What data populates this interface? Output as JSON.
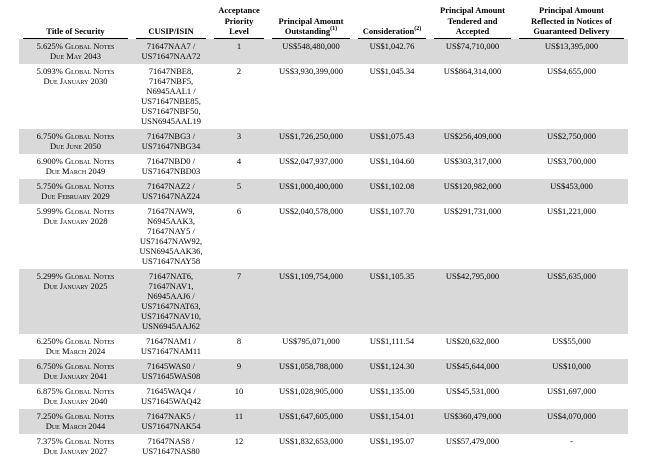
{
  "colors": {
    "row_shading": "#d9d9d9",
    "text": "#000000",
    "background": "#ffffff"
  },
  "table": {
    "headers": [
      {
        "text": "Title of Security",
        "sup": ""
      },
      {
        "text": "CUSIP/ISIN",
        "sup": ""
      },
      {
        "text": "Acceptance\nPriority\nLevel",
        "sup": ""
      },
      {
        "text": "Principal Amount\nOutstanding",
        "sup": "(1)"
      },
      {
        "text": "Consideration",
        "sup": "(2)"
      },
      {
        "text": "Principal Amount\nTendered and\nAccepted",
        "sup": ""
      },
      {
        "text": "Principal Amount\nReflected in Notices of\nGuaranteed Delivery",
        "sup": ""
      }
    ],
    "rows": [
      {
        "title": "5.625% Global Notes\nDue May 2043",
        "cusip": "71647NAA7 /\nUS71647NAA72",
        "priority": "1",
        "outstanding": "US$548,480,000",
        "consideration": "US$1,042.76",
        "tendered": "US$74,710,000",
        "guaranteed": "US$13,395,000",
        "shaded": true
      },
      {
        "title": "5.093% Global Notes\nDue January 2030",
        "cusip": "71647NBE8,\n71647NBF5,\nN6945AAL1 /\nUS71647NBE85,\nUS71647NBF50,\nUSN6945AAL19",
        "priority": "2",
        "outstanding": "US$3,930,399,000",
        "consideration": "US$1,045.34",
        "tendered": "US$864,314,000",
        "guaranteed": "US$4,655,000",
        "shaded": false
      },
      {
        "title": "6.750% Global Notes\nDue June 2050",
        "cusip": "71647NBG3 /\nUS71647NBG34",
        "priority": "3",
        "outstanding": "US$1,726,250,000",
        "consideration": "US$1,075.43",
        "tendered": "US$256,409,000",
        "guaranteed": "US$2,750,000",
        "shaded": true
      },
      {
        "title": "6.900% Global Notes\nDue March 2049",
        "cusip": "71647NBD0 /\nUS71647NBD03",
        "priority": "4",
        "outstanding": "US$2,047,937,000",
        "consideration": "US$1,104.60",
        "tendered": "US$303,317,000",
        "guaranteed": "US$3,700,000",
        "shaded": false
      },
      {
        "title": "5.750% Global Notes\nDue February 2029",
        "cusip": "71647NAZ2 /\nUS71647NAZ24",
        "priority": "5",
        "outstanding": "US$1,000,400,000",
        "consideration": "US$1,102.08",
        "tendered": "US$120,982,000",
        "guaranteed": "US$453,000",
        "shaded": true
      },
      {
        "title": "5.999% Global Notes\nDue January 2028",
        "cusip": "71647NAW9,\nN6945AAK3,\n71647NAY5 /\nUS71647NAW92,\nUSN6945AAK36,\nUS71647NAY58",
        "priority": "6",
        "outstanding": "US$2,040,578,000",
        "consideration": "US$1,107.70",
        "tendered": "US$291,731,000",
        "guaranteed": "US$1,221,000",
        "shaded": false
      },
      {
        "title": "5.299% Global Notes\nDue January 2025",
        "cusip": "71647NAT6,\n71647NAV1,\nN6945AAJ6 /\nUS71647NAT63,\nUS71647NAV10,\nUSN6945AAJ62",
        "priority": "7",
        "outstanding": "US$1,109,754,000",
        "consideration": "US$1,105.35",
        "tendered": "US$42,795,000",
        "guaranteed": "US$5,635,000",
        "shaded": true
      },
      {
        "title": "6.250% Global Notes\nDue March 2024",
        "cusip": "71647NAM1 /\nUS71647NAM11",
        "priority": "8",
        "outstanding": "US$795,071,000",
        "consideration": "US$1,111.54",
        "tendered": "US$20,632,000",
        "guaranteed": "US$55,000",
        "shaded": false
      },
      {
        "title": "6.750% Global Notes\nDue January 2041",
        "cusip": "71645WAS0 /\nUS71645WAS08",
        "priority": "9",
        "outstanding": "US$1,058,788,000",
        "consideration": "US$1,124.30",
        "tendered": "US$45,644,000",
        "guaranteed": "US$10,000",
        "shaded": true
      },
      {
        "title": "6.875% Global Notes\nDue January 2040",
        "cusip": "71645WAQ4 /\nUS71645WAQ42",
        "priority": "10",
        "outstanding": "US$1,028,905,000",
        "consideration": "US$1,135.00",
        "tendered": "US$45,531,000",
        "guaranteed": "US$1,697,000",
        "shaded": false
      },
      {
        "title": "7.250% Global Notes\nDue March 2044",
        "cusip": "71647NAK5 /\nUS71647NAK54",
        "priority": "11",
        "outstanding": "US$1,647,605,000",
        "consideration": "US$1,154.01",
        "tendered": "US$360,479,000",
        "guaranteed": "US$4,070,000",
        "shaded": true
      },
      {
        "title": "7.375% Global Notes\nDue January 2027",
        "cusip": "71647NAS8 /\nUS71647NAS80",
        "priority": "12",
        "outstanding": "US$1,832,653,000",
        "consideration": "US$1,195.07",
        "tendered": "US$57,479,000",
        "guaranteed": "-",
        "shaded": false
      }
    ]
  }
}
